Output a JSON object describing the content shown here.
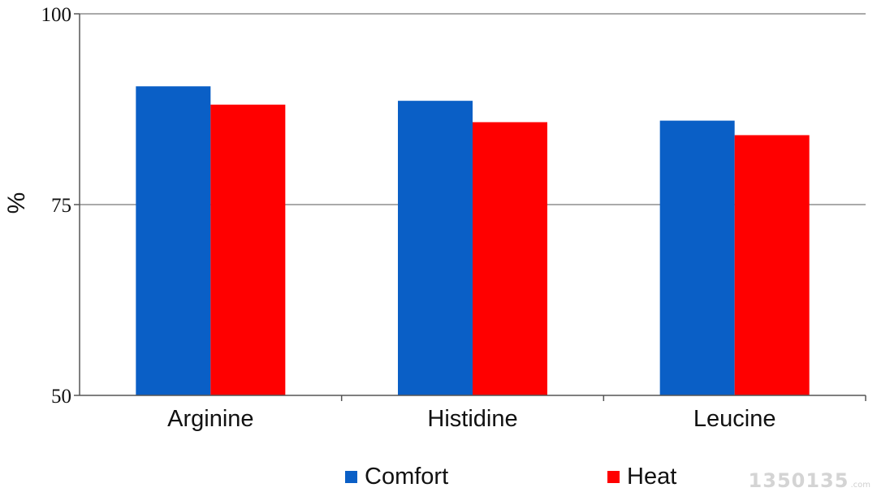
{
  "chart_data": {
    "type": "bar",
    "categories": [
      "Arginine",
      "Histidine",
      "Leucine"
    ],
    "series": [
      {
        "name": "Comfort",
        "color": "#0a5fc6",
        "values": [
          90.5,
          88.6,
          86.0
        ]
      },
      {
        "name": "Heat",
        "color": "#ff0000",
        "values": [
          88.1,
          85.8,
          84.1
        ]
      }
    ],
    "title": "",
    "xlabel": "",
    "ylabel": "%",
    "ylim": [
      50,
      100
    ],
    "yticks": [
      "50",
      "75",
      "100"
    ],
    "grid": true,
    "legend": "bottom"
  },
  "watermark": {
    "main": "1350135",
    "sub": ".com"
  }
}
